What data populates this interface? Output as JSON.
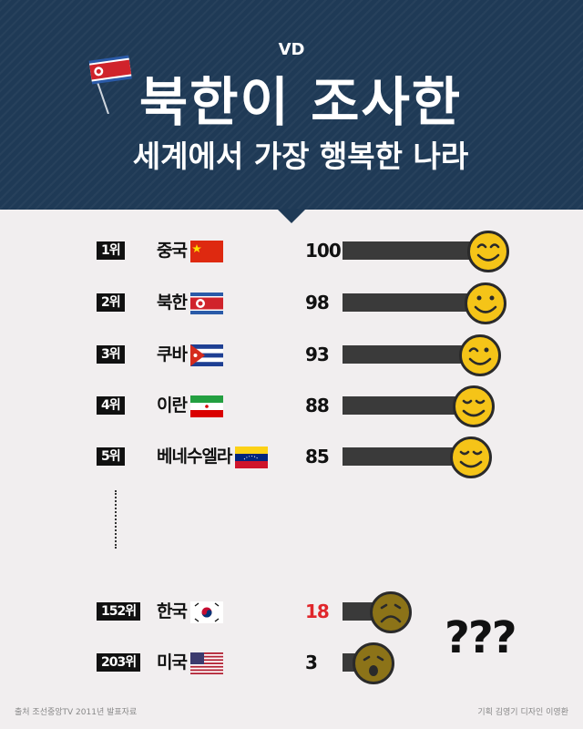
{
  "header": {
    "brand": "VD",
    "title": "북한이 조사한",
    "subtitle": "세계에서 가장 행복한 나라",
    "flag_icon": "north-korea-flag-icon"
  },
  "chart_data": {
    "type": "bar",
    "orientation": "horizontal",
    "title": "북한이 조사한 세계에서 가장 행복한 나라",
    "categories": [
      "중국",
      "북한",
      "쿠바",
      "이란",
      "베네수엘라",
      "한국",
      "미국"
    ],
    "ranks": [
      "1위",
      "2위",
      "3위",
      "4위",
      "5위",
      "152위",
      "203위"
    ],
    "values": [
      100,
      98,
      93,
      88,
      85,
      18,
      3
    ],
    "flags": [
      "china",
      "north-korea",
      "cuba",
      "iran",
      "venezuela",
      "south-korea",
      "usa"
    ],
    "faces": [
      "happy-closed",
      "happy",
      "wink",
      "content",
      "content",
      "sad",
      "shocked"
    ],
    "value_colors": [
      "#111111",
      "#111111",
      "#111111",
      "#111111",
      "#111111",
      "#e0262b",
      "#111111"
    ],
    "bar_color": "#3a3a3a",
    "face_colors": {
      "happy": "#f5c418",
      "sad": "#8c7318"
    }
  },
  "annotation": "???",
  "footer": {
    "source": "출처 조선중앙TV 2011년 발표자료",
    "credits": "기획 김영기 디자인 이영환"
  },
  "colors": {
    "header_bg": "#1f3a56",
    "page_bg": "#f1eeef"
  }
}
